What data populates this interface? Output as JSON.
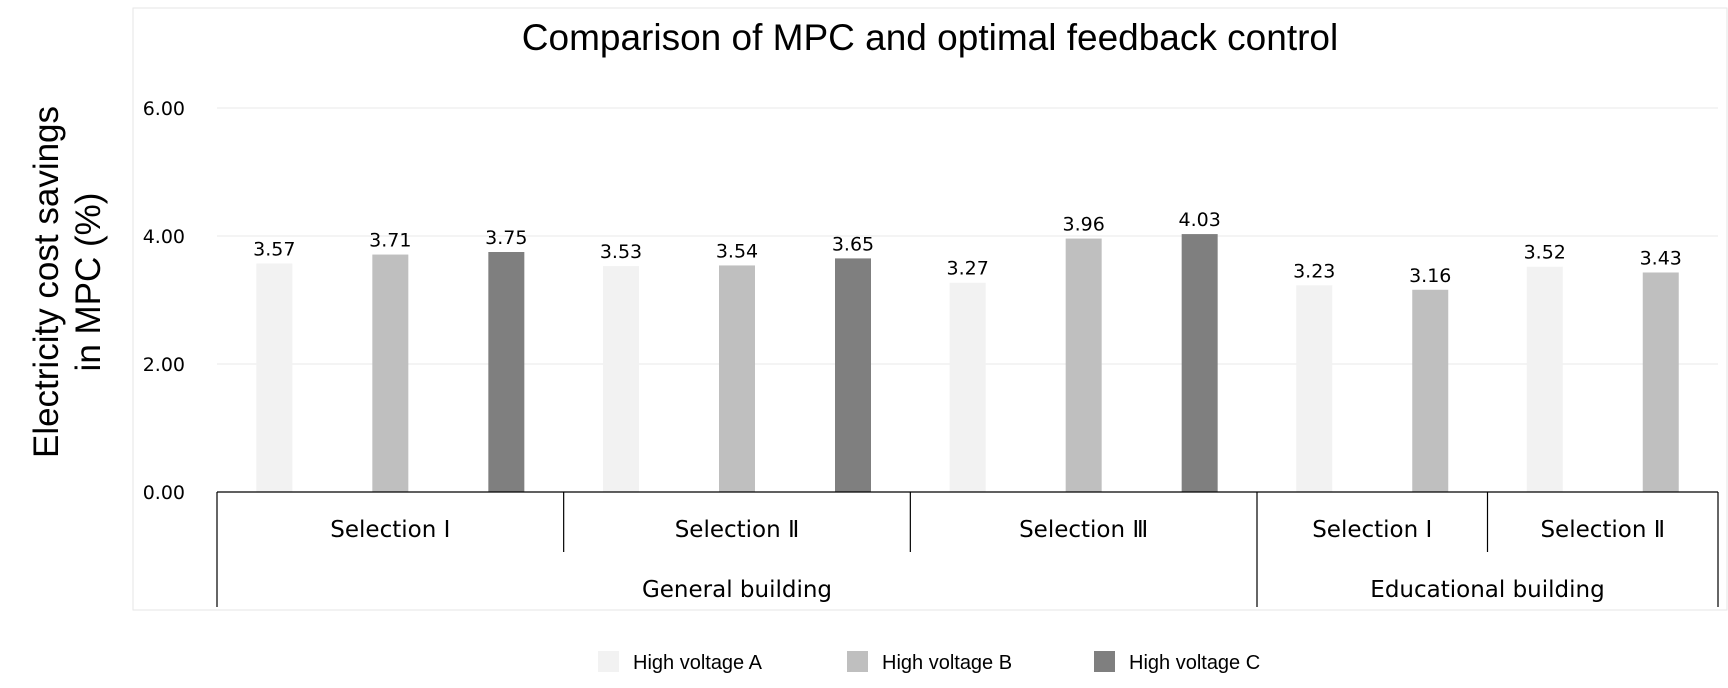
{
  "chart_data": {
    "type": "bar",
    "title": "Comparison of MPC and optimal feedback control",
    "ylabel_lines": [
      "Electricity cost savings",
      "in MPC (%)"
    ],
    "ylim": [
      0,
      6
    ],
    "yticks": [
      "0.00",
      "2.00",
      "4.00",
      "6.00"
    ],
    "grid": true,
    "legend_position": "bottom",
    "categories": [
      "Selection Ⅰ",
      "Selection Ⅱ",
      "Selection Ⅲ",
      "Selection Ⅰ",
      "Selection Ⅱ"
    ],
    "groups": [
      {
        "label": "General building",
        "span": 3
      },
      {
        "label": "Educational building",
        "span": 2
      }
    ],
    "series": [
      {
        "name": "High voltage A",
        "color": "#f2f2f2",
        "values": [
          3.57,
          3.53,
          3.27,
          3.23,
          3.52
        ]
      },
      {
        "name": "High voltage B",
        "color": "#bfbfbf",
        "values": [
          3.71,
          3.54,
          3.96,
          3.16,
          3.43
        ]
      },
      {
        "name": "High voltage C",
        "color": "#7f7f7f",
        "values": [
          3.75,
          3.65,
          4.03,
          null,
          null
        ]
      }
    ],
    "data_labels": [
      [
        "3.57",
        "3.71",
        "3.75"
      ],
      [
        "3.53",
        "3.54",
        "3.65"
      ],
      [
        "3.27",
        "3.96",
        "4.03"
      ],
      [
        "3.23",
        "3.16"
      ],
      [
        "3.52",
        "3.43"
      ]
    ]
  }
}
